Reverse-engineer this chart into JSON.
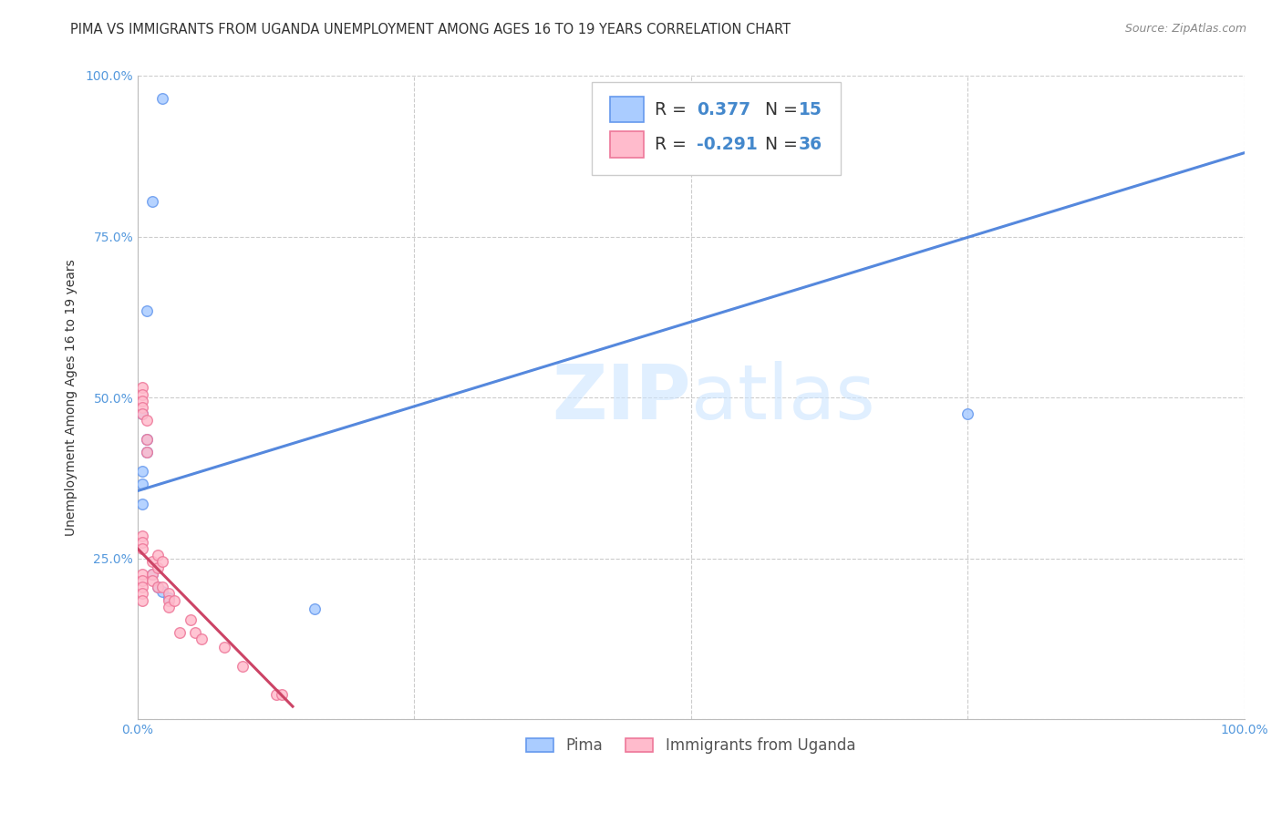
{
  "title": "PIMA VS IMMIGRANTS FROM UGANDA UNEMPLOYMENT AMONG AGES 16 TO 19 YEARS CORRELATION CHART",
  "source": "Source: ZipAtlas.com",
  "ylabel": "Unemployment Among Ages 16 to 19 years",
  "xlim": [
    0,
    1.0
  ],
  "ylim": [
    0,
    1.0
  ],
  "xticks": [
    0.0,
    0.25,
    0.5,
    0.75,
    1.0
  ],
  "yticks": [
    0.0,
    0.25,
    0.5,
    0.75,
    1.0
  ],
  "xticklabels": [
    "0.0%",
    "",
    "",
    "",
    "100.0%"
  ],
  "yticklabels": [
    "",
    "25.0%",
    "50.0%",
    "75.0%",
    "100.0%"
  ],
  "grid_color": "#cccccc",
  "background_color": "#ffffff",
  "pima_face_color": "#aaccff",
  "pima_edge_color": "#6699ee",
  "pima_R": 0.377,
  "pima_N": 15,
  "pima_line_color": "#5588dd",
  "pima_line_x": [
    0.0,
    1.0
  ],
  "pima_line_y": [
    0.355,
    0.88
  ],
  "uganda_face_color": "#ffbbcc",
  "uganda_edge_color": "#ee7799",
  "uganda_R": -0.291,
  "uganda_N": 36,
  "uganda_line_color": "#cc4466",
  "uganda_line_x": [
    0.0,
    0.14
  ],
  "uganda_line_y": [
    0.265,
    0.02
  ],
  "pima_points_x": [
    0.022,
    0.013,
    0.008,
    0.004,
    0.004,
    0.004,
    0.008,
    0.008,
    0.013,
    0.018,
    0.022,
    0.028,
    0.16,
    0.75,
    0.004
  ],
  "pima_points_y": [
    0.965,
    0.805,
    0.635,
    0.475,
    0.365,
    0.385,
    0.415,
    0.435,
    0.225,
    0.205,
    0.198,
    0.188,
    0.172,
    0.475,
    0.335
  ],
  "uganda_points_x": [
    0.004,
    0.004,
    0.004,
    0.004,
    0.004,
    0.004,
    0.004,
    0.004,
    0.004,
    0.004,
    0.004,
    0.004,
    0.004,
    0.008,
    0.008,
    0.008,
    0.013,
    0.013,
    0.013,
    0.018,
    0.018,
    0.018,
    0.022,
    0.022,
    0.028,
    0.028,
    0.028,
    0.033,
    0.038,
    0.048,
    0.052,
    0.058,
    0.078,
    0.095,
    0.125,
    0.13
  ],
  "uganda_points_y": [
    0.515,
    0.505,
    0.495,
    0.485,
    0.475,
    0.285,
    0.275,
    0.265,
    0.225,
    0.215,
    0.205,
    0.195,
    0.185,
    0.465,
    0.435,
    0.415,
    0.245,
    0.225,
    0.215,
    0.255,
    0.235,
    0.205,
    0.245,
    0.205,
    0.195,
    0.185,
    0.175,
    0.185,
    0.135,
    0.155,
    0.135,
    0.125,
    0.112,
    0.082,
    0.038,
    0.038
  ],
  "watermark_zip": "ZIP",
  "watermark_atlas": "atlas",
  "marker_size": 70,
  "title_fontsize": 10.5,
  "axis_label_fontsize": 10,
  "tick_fontsize": 10,
  "source_fontsize": 9
}
